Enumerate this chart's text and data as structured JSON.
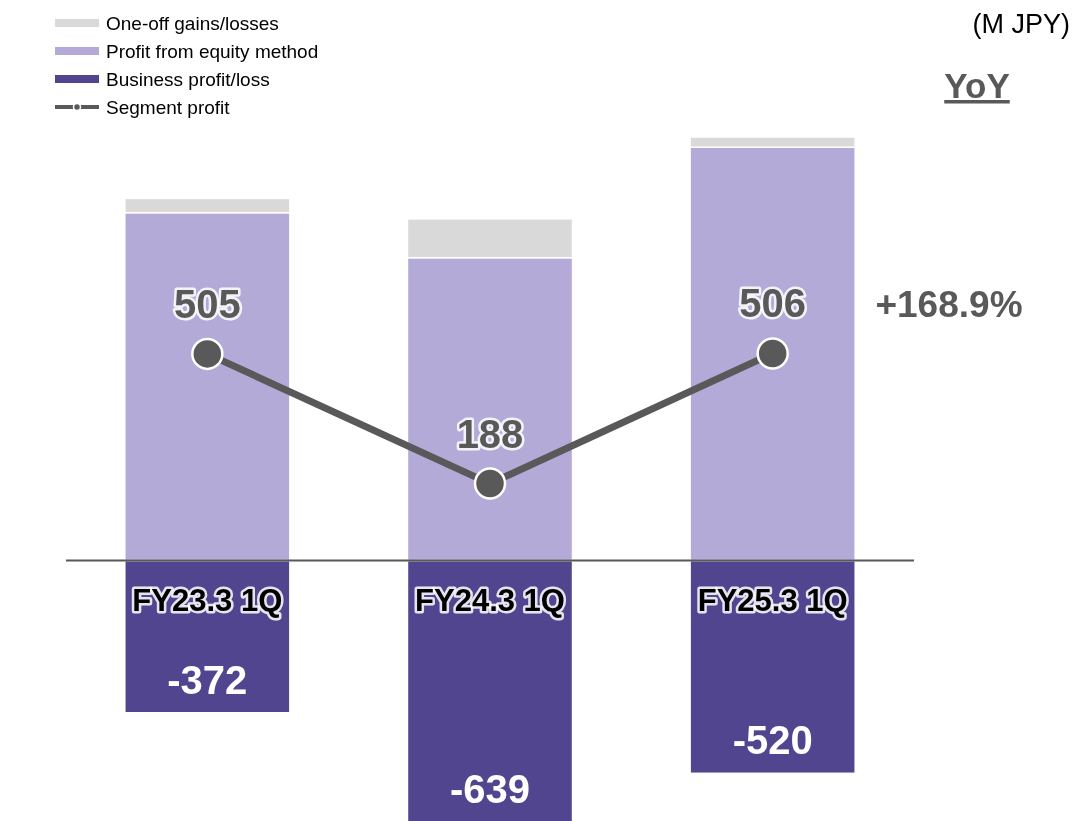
{
  "chart_data": {
    "type": "bar",
    "stacked": true,
    "categories": [
      "FY23.3 1Q",
      "FY24.3 1Q",
      "FY25.3 1Q"
    ],
    "series": [
      {
        "name": "Business profit/loss",
        "color": "#524590",
        "values": [
          -372,
          -639,
          -520
        ],
        "value_labels": [
          "-372",
          "-639",
          "-520"
        ]
      },
      {
        "name": "Profit from equity method",
        "color": "#b3aad8",
        "values": [
          850,
          740,
          1010
        ]
      },
      {
        "name": "One-off gains/losses",
        "color": "#d9d9d9",
        "values": [
          35,
          95,
          25
        ]
      },
      {
        "name": "Segment profit",
        "type": "line",
        "color": "#595959",
        "marker": "circle",
        "values": [
          505,
          188,
          506
        ],
        "value_labels": [
          "505",
          "188",
          "506"
        ]
      }
    ],
    "tick_labels": "x",
    "legend": "top left",
    "annotations": [
      "(M JPY)",
      "YoY",
      "+168.9%"
    ]
  }
}
